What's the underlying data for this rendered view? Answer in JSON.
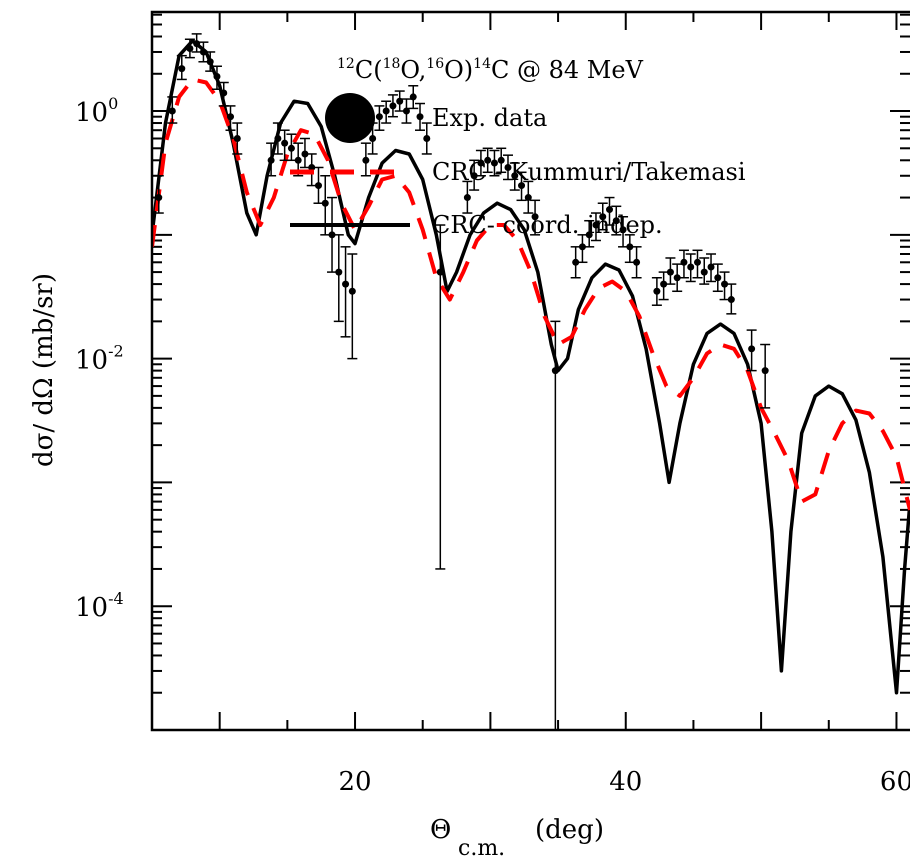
{
  "chart_data": {
    "type": "line",
    "title": "¹²C(¹⁸O,¹⁶O)¹⁴C @ 84 MeV",
    "title_parts": {
      "a": "12",
      "b": "C(",
      "c": "18",
      "d": "O,",
      "e": "16",
      "f": "O)",
      "g": "14",
      "h": "C @ 84 MeV"
    },
    "xlabel_main": "Θ",
    "xlabel_sub": "c.m.",
    "xlabel_unit": "(deg)",
    "ylabel": "dσ/ dΩ (mb/sr)",
    "xlim": [
      5,
      61
    ],
    "ylim_log10": [
      -5,
      0.8
    ],
    "y_scale": "log",
    "x_ticks": [
      20,
      40,
      60
    ],
    "x_tick_labels": [
      "20",
      "40",
      "60"
    ],
    "y_ticks": [
      {
        "base": "10",
        "exp": "0",
        "log": 0
      },
      {
        "base": "10",
        "exp": "-2",
        "log": -2
      },
      {
        "base": "10",
        "exp": "-4",
        "log": -4
      }
    ],
    "legend_placement": "top-center",
    "legend": [
      {
        "label": "Exp. data",
        "style": "marker",
        "color": "#000000"
      },
      {
        "label": "CRC - Kummuri/Takemasi",
        "style": "dashed",
        "color": "#ff0000"
      },
      {
        "label": "CRC- coord. indep.",
        "style": "solid",
        "color": "#000000"
      }
    ],
    "series": [
      {
        "name": "CRC- coord. indep.",
        "color": "#000000",
        "style": "solid",
        "points": [
          [
            5,
            0.1
          ],
          [
            6,
            0.8
          ],
          [
            7,
            2.8
          ],
          [
            8,
            3.7
          ],
          [
            9,
            3.0
          ],
          [
            10,
            1.6
          ],
          [
            11,
            0.55
          ],
          [
            12,
            0.15
          ],
          [
            12.7,
            0.1
          ],
          [
            13.5,
            0.3
          ],
          [
            14.5,
            0.8
          ],
          [
            15.5,
            1.2
          ],
          [
            16.5,
            1.15
          ],
          [
            17.5,
            0.75
          ],
          [
            18.5,
            0.3
          ],
          [
            19.5,
            0.1
          ],
          [
            20,
            0.085
          ],
          [
            21,
            0.2
          ],
          [
            22,
            0.38
          ],
          [
            23,
            0.48
          ],
          [
            24,
            0.45
          ],
          [
            25,
            0.28
          ],
          [
            26,
            0.1
          ],
          [
            26.8,
            0.035
          ],
          [
            27.5,
            0.05
          ],
          [
            28.5,
            0.1
          ],
          [
            29.5,
            0.15
          ],
          [
            30.5,
            0.18
          ],
          [
            31.5,
            0.16
          ],
          [
            32.5,
            0.11
          ],
          [
            33.5,
            0.05
          ],
          [
            34.5,
            0.013
          ],
          [
            35,
            0.008
          ],
          [
            35.7,
            0.01
          ],
          [
            36.5,
            0.025
          ],
          [
            37.5,
            0.045
          ],
          [
            38.5,
            0.058
          ],
          [
            39.5,
            0.052
          ],
          [
            40.5,
            0.032
          ],
          [
            41.5,
            0.012
          ],
          [
            42.5,
            0.003
          ],
          [
            43.2,
            0.001
          ],
          [
            44,
            0.003
          ],
          [
            45,
            0.009
          ],
          [
            46,
            0.016
          ],
          [
            47,
            0.019
          ],
          [
            48,
            0.016
          ],
          [
            49,
            0.009
          ],
          [
            50,
            0.003
          ],
          [
            50.8,
            0.0004
          ],
          [
            51.5,
            3e-05
          ],
          [
            52.2,
            0.0004
          ],
          [
            53,
            0.0025
          ],
          [
            54,
            0.005
          ],
          [
            55,
            0.006
          ],
          [
            56,
            0.0052
          ],
          [
            57,
            0.0032
          ],
          [
            58,
            0.0012
          ],
          [
            59,
            0.00025
          ],
          [
            60,
            2e-05
          ],
          [
            60.6,
            0.0002
          ],
          [
            61,
            0.0007
          ]
        ]
      },
      {
        "name": "CRC - Kummuri/Takemasi",
        "color": "#ff0000",
        "style": "dashed",
        "points": [
          [
            5,
            0.08
          ],
          [
            6,
            0.55
          ],
          [
            7,
            1.3
          ],
          [
            8,
            1.8
          ],
          [
            9,
            1.7
          ],
          [
            10,
            1.2
          ],
          [
            11,
            0.6
          ],
          [
            12,
            0.22
          ],
          [
            13,
            0.12
          ],
          [
            14,
            0.2
          ],
          [
            15,
            0.45
          ],
          [
            16,
            0.7
          ],
          [
            17,
            0.65
          ],
          [
            18,
            0.4
          ],
          [
            19,
            0.18
          ],
          [
            20,
            0.11
          ],
          [
            21,
            0.17
          ],
          [
            22,
            0.28
          ],
          [
            23,
            0.3
          ],
          [
            24,
            0.22
          ],
          [
            25,
            0.11
          ],
          [
            26,
            0.045
          ],
          [
            27,
            0.03
          ],
          [
            28,
            0.05
          ],
          [
            29,
            0.09
          ],
          [
            30,
            0.12
          ],
          [
            31,
            0.12
          ],
          [
            32,
            0.09
          ],
          [
            33,
            0.05
          ],
          [
            34,
            0.022
          ],
          [
            35,
            0.013
          ],
          [
            36,
            0.015
          ],
          [
            37,
            0.025
          ],
          [
            38,
            0.037
          ],
          [
            39,
            0.042
          ],
          [
            40,
            0.035
          ],
          [
            41,
            0.022
          ],
          [
            42,
            0.011
          ],
          [
            43,
            0.006
          ],
          [
            44,
            0.005
          ],
          [
            45,
            0.007
          ],
          [
            46,
            0.011
          ],
          [
            47,
            0.013
          ],
          [
            48,
            0.012
          ],
          [
            49,
            0.008
          ],
          [
            50,
            0.004
          ],
          [
            51,
            0.0025
          ],
          [
            52,
            0.0015
          ],
          [
            53,
            0.0007
          ],
          [
            54,
            0.0008
          ],
          [
            55,
            0.0018
          ],
          [
            56,
            0.003
          ],
          [
            57,
            0.0038
          ],
          [
            58,
            0.0036
          ],
          [
            59,
            0.0026
          ],
          [
            60,
            0.0016
          ],
          [
            61,
            0.0006
          ]
        ]
      },
      {
        "name": "Exp. data",
        "color": "#000000",
        "style": "errorbar",
        "points": [
          [
            5.5,
            0.2,
            0.15,
            0.3
          ],
          [
            6.5,
            1.0,
            0.8,
            1.3
          ],
          [
            7.2,
            2.2,
            1.8,
            2.8
          ],
          [
            7.8,
            3.2,
            2.7,
            3.8
          ],
          [
            8.3,
            3.5,
            3.0,
            4.2
          ],
          [
            8.8,
            3.0,
            2.5,
            3.6
          ],
          [
            9.3,
            2.5,
            2.1,
            3.0
          ],
          [
            9.8,
            1.9,
            1.5,
            2.3
          ],
          [
            10.3,
            1.4,
            1.1,
            1.7
          ],
          [
            10.8,
            0.9,
            0.7,
            1.1
          ],
          [
            11.3,
            0.6,
            0.45,
            0.8
          ],
          [
            13.8,
            0.4,
            0.3,
            0.55
          ],
          [
            14.3,
            0.6,
            0.45,
            0.8
          ],
          [
            14.8,
            0.55,
            0.4,
            0.7
          ],
          [
            15.3,
            0.5,
            0.4,
            0.65
          ],
          [
            15.8,
            0.4,
            0.3,
            0.55
          ],
          [
            16.3,
            0.45,
            0.35,
            0.6
          ],
          [
            16.8,
            0.35,
            0.25,
            0.45
          ],
          [
            17.3,
            0.25,
            0.18,
            0.35
          ],
          [
            17.8,
            0.18,
            0.1,
            0.3
          ],
          [
            18.3,
            0.1,
            0.05,
            0.2
          ],
          [
            18.8,
            0.05,
            0.02,
            0.1
          ],
          [
            19.3,
            0.04,
            0.015,
            0.08
          ],
          [
            19.8,
            0.035,
            0.01,
            0.07
          ],
          [
            20.8,
            0.4,
            0.3,
            0.55
          ],
          [
            21.3,
            0.6,
            0.45,
            0.8
          ],
          [
            21.8,
            0.9,
            0.7,
            1.1
          ],
          [
            22.3,
            1.0,
            0.8,
            1.2
          ],
          [
            22.8,
            1.1,
            0.9,
            1.35
          ],
          [
            23.3,
            1.2,
            1.0,
            1.45
          ],
          [
            23.8,
            1.0,
            0.8,
            1.25
          ],
          [
            24.3,
            1.3,
            1.05,
            1.6
          ],
          [
            24.8,
            0.9,
            0.7,
            1.15
          ],
          [
            25.3,
            0.6,
            0.45,
            0.8
          ],
          [
            28.3,
            0.2,
            0.15,
            0.27
          ],
          [
            28.8,
            0.3,
            0.23,
            0.4
          ],
          [
            29.3,
            0.38,
            0.3,
            0.48
          ],
          [
            29.8,
            0.4,
            0.32,
            0.5
          ],
          [
            30.3,
            0.38,
            0.3,
            0.48
          ],
          [
            30.8,
            0.4,
            0.32,
            0.5
          ],
          [
            31.3,
            0.35,
            0.28,
            0.44
          ],
          [
            31.8,
            0.3,
            0.23,
            0.38
          ],
          [
            32.3,
            0.25,
            0.19,
            0.32
          ],
          [
            32.8,
            0.2,
            0.15,
            0.27
          ],
          [
            33.3,
            0.14,
            0.1,
            0.19
          ],
          [
            26.3,
            0.05,
            0.0002,
            0.12
          ],
          [
            34.8,
            0.008,
            1e-05,
            0.02
          ],
          [
            36.3,
            0.06,
            0.045,
            0.08
          ],
          [
            36.8,
            0.08,
            0.06,
            0.1
          ],
          [
            37.3,
            0.1,
            0.08,
            0.13
          ],
          [
            37.8,
            0.12,
            0.09,
            0.15
          ],
          [
            38.3,
            0.14,
            0.11,
            0.18
          ],
          [
            38.8,
            0.16,
            0.12,
            0.2
          ],
          [
            39.3,
            0.13,
            0.1,
            0.17
          ],
          [
            39.8,
            0.11,
            0.08,
            0.14
          ],
          [
            40.3,
            0.08,
            0.06,
            0.1
          ],
          [
            40.8,
            0.06,
            0.045,
            0.08
          ],
          [
            42.3,
            0.035,
            0.027,
            0.045
          ],
          [
            42.8,
            0.04,
            0.03,
            0.05
          ],
          [
            43.3,
            0.05,
            0.04,
            0.065
          ],
          [
            43.8,
            0.045,
            0.035,
            0.058
          ],
          [
            44.3,
            0.06,
            0.045,
            0.075
          ],
          [
            44.8,
            0.055,
            0.042,
            0.07
          ],
          [
            45.3,
            0.06,
            0.045,
            0.075
          ],
          [
            45.8,
            0.05,
            0.04,
            0.065
          ],
          [
            46.3,
            0.055,
            0.042,
            0.07
          ],
          [
            46.8,
            0.045,
            0.035,
            0.058
          ],
          [
            47.3,
            0.04,
            0.03,
            0.05
          ],
          [
            47.8,
            0.03,
            0.023,
            0.04
          ],
          [
            49.3,
            0.012,
            0.008,
            0.017
          ],
          [
            50.3,
            0.008,
            0.004,
            0.013
          ]
        ]
      }
    ]
  }
}
